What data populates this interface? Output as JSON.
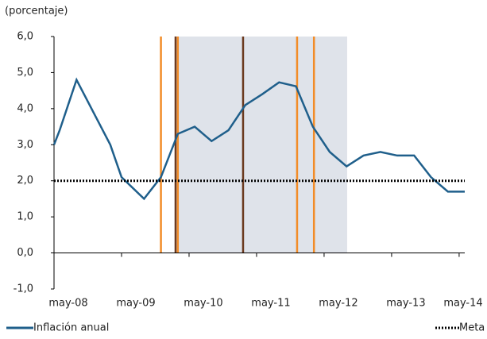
{
  "chart_data": {
    "type": "line",
    "y_label": "(porcentaje)",
    "xlim": [
      0,
      73
    ],
    "xticks": [
      {
        "value": 0,
        "label": "may-08"
      },
      {
        "value": 12,
        "label": "may-09"
      },
      {
        "value": 24,
        "label": "may-10"
      },
      {
        "value": 36,
        "label": "may-11"
      },
      {
        "value": 48,
        "label": "may-12"
      },
      {
        "value": 60,
        "label": "may-13"
      },
      {
        "value": 72,
        "label": "may-14"
      }
    ],
    "ylim": [
      -1,
      6
    ],
    "yticks": [
      {
        "value": -1,
        "label": "-1,0"
      },
      {
        "value": 0,
        "label": "0,0"
      },
      {
        "value": 1,
        "label": "1,0"
      },
      {
        "value": 2,
        "label": "2,0"
      },
      {
        "value": 3,
        "label": "3,0"
      },
      {
        "value": 4,
        "label": "4,0"
      },
      {
        "value": 5,
        "label": "5,0"
      },
      {
        "value": 6,
        "label": "6,0"
      }
    ],
    "series": [
      {
        "name": "Inflación anual",
        "color": "#1f5f8b",
        "style": "solid",
        "x": [
          0,
          1,
          4,
          7,
          10,
          12,
          16,
          19,
          22,
          25,
          28,
          31,
          34,
          37,
          40,
          43,
          46,
          49,
          52,
          55,
          58,
          61,
          64,
          67,
          70,
          73
        ],
        "values": [
          3.0,
          3.4,
          4.8,
          3.9,
          3.0,
          2.1,
          1.5,
          2.1,
          3.3,
          3.5,
          3.1,
          3.4,
          4.1,
          4.4,
          4.73,
          4.62,
          3.5,
          2.8,
          2.4,
          2.7,
          2.8,
          2.7,
          2.7,
          2.1,
          1.7,
          1.7
        ]
      },
      {
        "name": "Meta",
        "color": "#000000",
        "style": "dotted",
        "x": [
          0,
          73
        ],
        "values": [
          2,
          2
        ]
      }
    ],
    "shade": {
      "x": [
        21.6,
        52.1
      ],
      "color": "#dfe3ea"
    },
    "vlines": [
      {
        "x": 19,
        "color": "#f28c28"
      },
      {
        "x": 21.6,
        "color": "#6b3a1f"
      },
      {
        "x": 22,
        "color": "#f28c28"
      },
      {
        "x": 33.6,
        "color": "#6b3a1f"
      },
      {
        "x": 43.2,
        "color": "#f28c28"
      },
      {
        "x": 46.2,
        "color": "#f28c28"
      }
    ]
  }
}
